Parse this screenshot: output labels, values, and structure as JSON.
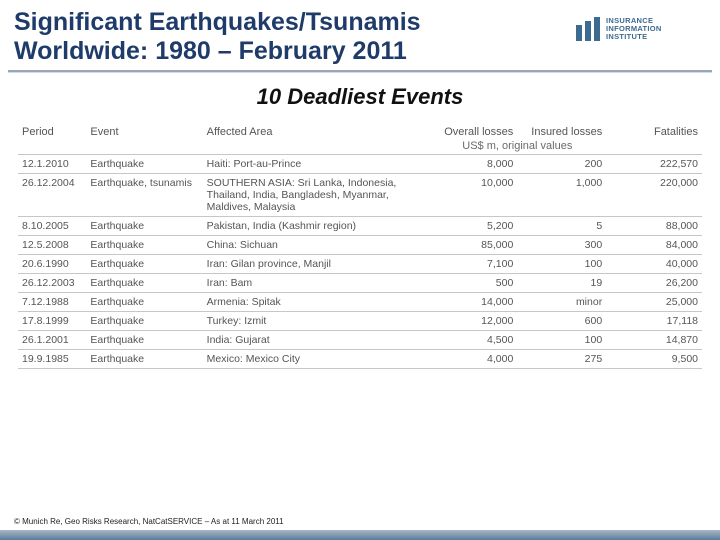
{
  "title_fontsize": 25,
  "subtitle_fontsize": 22,
  "header_fontsize": 11,
  "cell_fontsize": 10.5,
  "footnote_fontsize": 8,
  "title_color": "#1f3b6a",
  "text_color": "#555555",
  "logo_color": "#3d6a8f",
  "header": {
    "title_line1": "Significant Earthquakes/Tsunamis",
    "title_line2": "Worldwide: 1980 – February 2011"
  },
  "logo": {
    "l1": "INSURANCE",
    "l2": "INFORMATION",
    "l3": "INSTITUTE"
  },
  "subtitle": "10 Deadliest Events",
  "table": {
    "cols": [
      "Period",
      "Event",
      "Affected Area",
      "Overall losses",
      "Insured losses",
      "Fatalities"
    ],
    "subhead": "US$ m, original values",
    "rows": [
      {
        "period": "12.1.2010",
        "event": "Earthquake",
        "area": "Haiti: Port-au-Prince",
        "overall": "8,000",
        "insured": "200",
        "fatal": "222,570"
      },
      {
        "period": "26.12.2004",
        "event": "Earthquake, tsunamis",
        "area": "SOUTHERN ASIA: Sri Lanka, Indonesia, Thailand, India, Bangladesh, Myanmar, Maldives, Malaysia",
        "overall": "10,000",
        "insured": "1,000",
        "fatal": "220,000"
      },
      {
        "period": "8.10.2005",
        "event": "Earthquake",
        "area": "Pakistan, India (Kashmir region)",
        "overall": "5,200",
        "insured": "5",
        "fatal": "88,000"
      },
      {
        "period": "12.5.2008",
        "event": "Earthquake",
        "area": "China: Sichuan",
        "overall": "85,000",
        "insured": "300",
        "fatal": "84,000"
      },
      {
        "period": "20.6.1990",
        "event": "Earthquake",
        "area": "Iran: Gilan province, Manjil",
        "overall": "7,100",
        "insured": "100",
        "fatal": "40,000"
      },
      {
        "period": "26.12.2003",
        "event": "Earthquake",
        "area": "Iran: Bam",
        "overall": "500",
        "insured": "19",
        "fatal": "26,200"
      },
      {
        "period": "7.12.1988",
        "event": "Earthquake",
        "area": "Armenia: Spitak",
        "overall": "14,000",
        "insured": "minor",
        "fatal": "25,000"
      },
      {
        "period": "17.8.1999",
        "event": "Earthquake",
        "area": "Turkey: Izmit",
        "overall": "12,000",
        "insured": "600",
        "fatal": "17,118"
      },
      {
        "period": "26.1.2001",
        "event": "Earthquake",
        "area": "India: Gujarat",
        "overall": "4,500",
        "insured": "100",
        "fatal": "14,870"
      },
      {
        "period": "19.9.1985",
        "event": "Earthquake",
        "area": "Mexico: Mexico City",
        "overall": "4,000",
        "insured": "275",
        "fatal": "9,500"
      }
    ]
  },
  "footnote": "© Munich Re, Geo Risks Research, NatCatSERVICE – As at 11 March 2011"
}
